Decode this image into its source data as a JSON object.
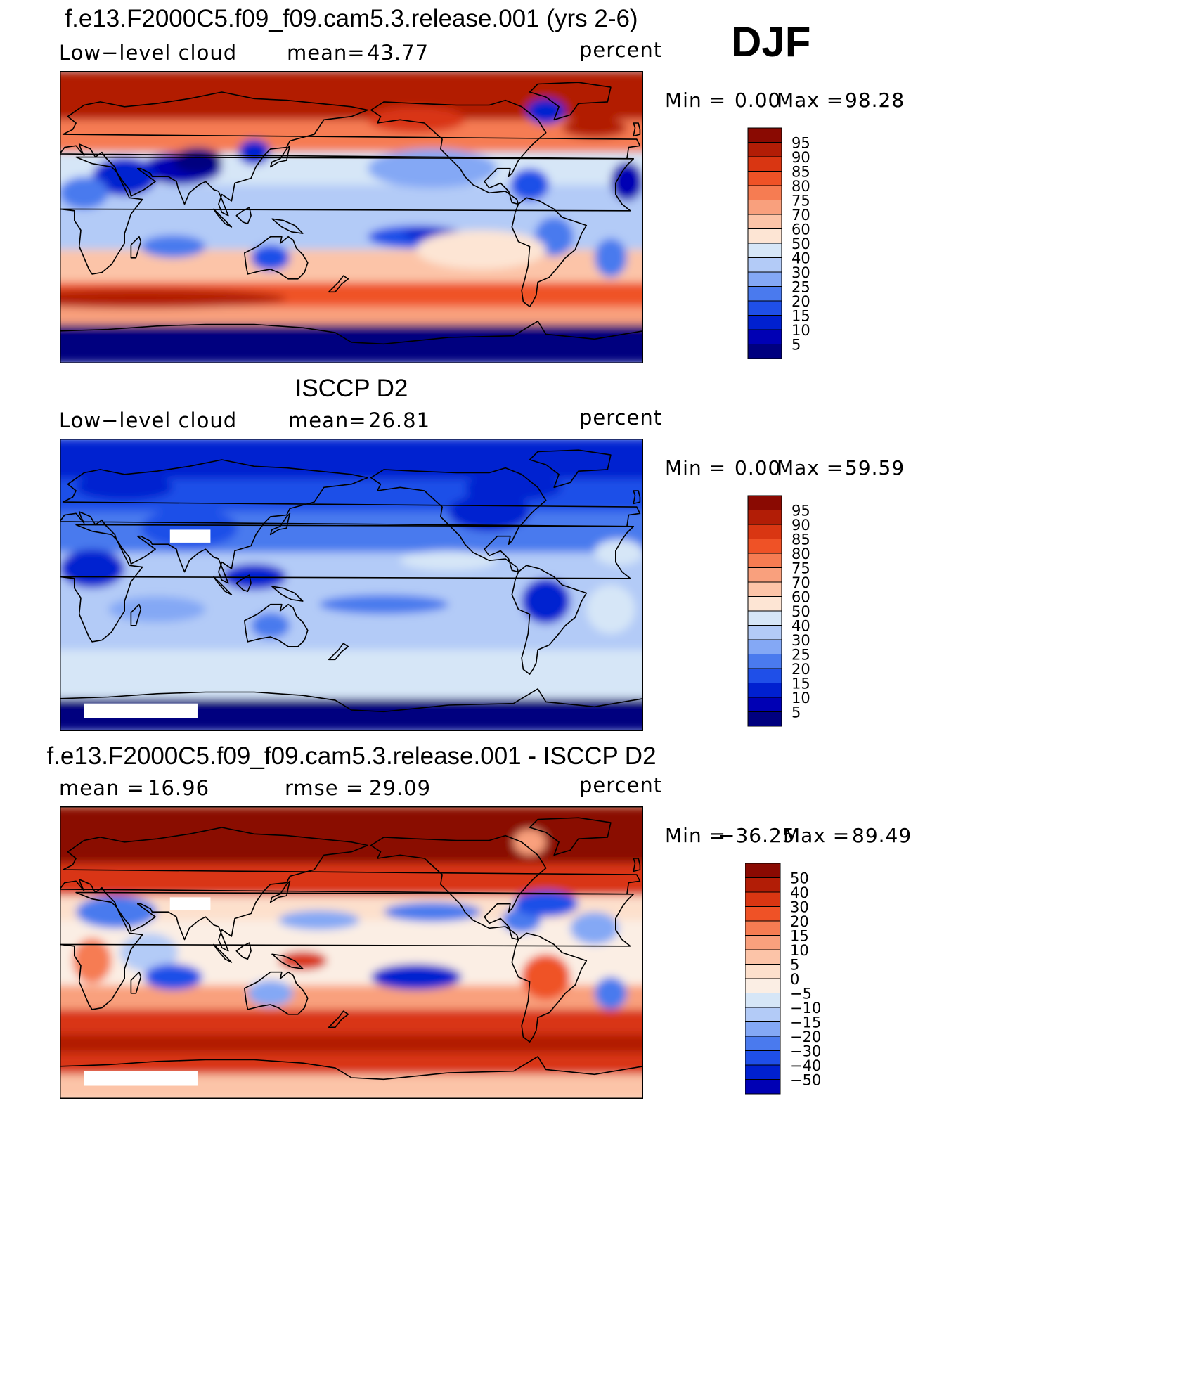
{
  "season": "DJF",
  "colors": {
    "scale_main": [
      "#00007f",
      "#0000b4",
      "#0020d0",
      "#1f4fe8",
      "#4a7aee",
      "#84a8f5",
      "#b3cbf7",
      "#d6e6f7",
      "#fde5d4",
      "#fcc4a8",
      "#f9a07d",
      "#f67c52",
      "#ef5226",
      "#d93612",
      "#b21d06",
      "#8a0a02"
    ],
    "scale_diff": [
      "#00007f",
      "#0000b4",
      "#0020d0",
      "#1f4fe8",
      "#4a7aee",
      "#84a8f5",
      "#b3cbf7",
      "#d6e6f7",
      "#fbeee4",
      "#fde0cc",
      "#fcc4a8",
      "#f9a07d",
      "#f67c52",
      "#ef5226",
      "#d93612",
      "#b21d06",
      "#8a0a02"
    ],
    "land": "#000000",
    "missing": "#ffffff"
  },
  "chart_data": [
    {
      "type": "heatmap",
      "title": "f.e13.F2000C5.f09_f09.cam5.3.release.001 (yrs 2-6)",
      "left_label": "Low−level cloud",
      "center_label": "mean=",
      "center_value": "43.77",
      "right_label": "percent",
      "min_label": "Min =",
      "min_value": "0.00",
      "max_label": "Max =",
      "max_value": "98.28",
      "field_min": 0.0,
      "field_max": 98.28,
      "lon_range": [
        0,
        360
      ],
      "lat_range": [
        -90,
        90
      ],
      "colorbar_levels": [
        "95",
        "90",
        "85",
        "80",
        "75",
        "70",
        "60",
        "50",
        "40",
        "30",
        "25",
        "20",
        "15",
        "10",
        "5"
      ]
    },
    {
      "type": "heatmap",
      "title": "ISCCP D2",
      "left_label": "Low−level cloud",
      "center_label": "mean=",
      "center_value": "26.81",
      "right_label": "percent",
      "min_label": "Min =",
      "min_value": "0.00",
      "max_label": "Max =",
      "max_value": "59.59",
      "field_min": 0.0,
      "field_max": 59.59,
      "lon_range": [
        0,
        360
      ],
      "lat_range": [
        -90,
        90
      ],
      "colorbar_levels": [
        "95",
        "90",
        "85",
        "80",
        "75",
        "70",
        "60",
        "50",
        "40",
        "30",
        "25",
        "20",
        "15",
        "10",
        "5"
      ]
    },
    {
      "type": "heatmap",
      "title": "f.e13.F2000C5.f09_f09.cam5.3.release.001 - ISCCP D2",
      "left_label": "mean =",
      "left_value": "16.96",
      "center_label": "rmse =",
      "center_value": "29.09",
      "right_label": "percent",
      "min_label": "Min =",
      "min_value": "−36.25",
      "max_label": "Max =",
      "max_value": "89.49",
      "field_min": -36.25,
      "field_max": 89.49,
      "lon_range": [
        0,
        360
      ],
      "lat_range": [
        -90,
        90
      ],
      "colorbar_levels": [
        "50",
        "40",
        "30",
        "20",
        "15",
        "10",
        "5",
        "0",
        "−5",
        "−10",
        "−15",
        "−20",
        "−30",
        "−40",
        "−50"
      ]
    }
  ]
}
